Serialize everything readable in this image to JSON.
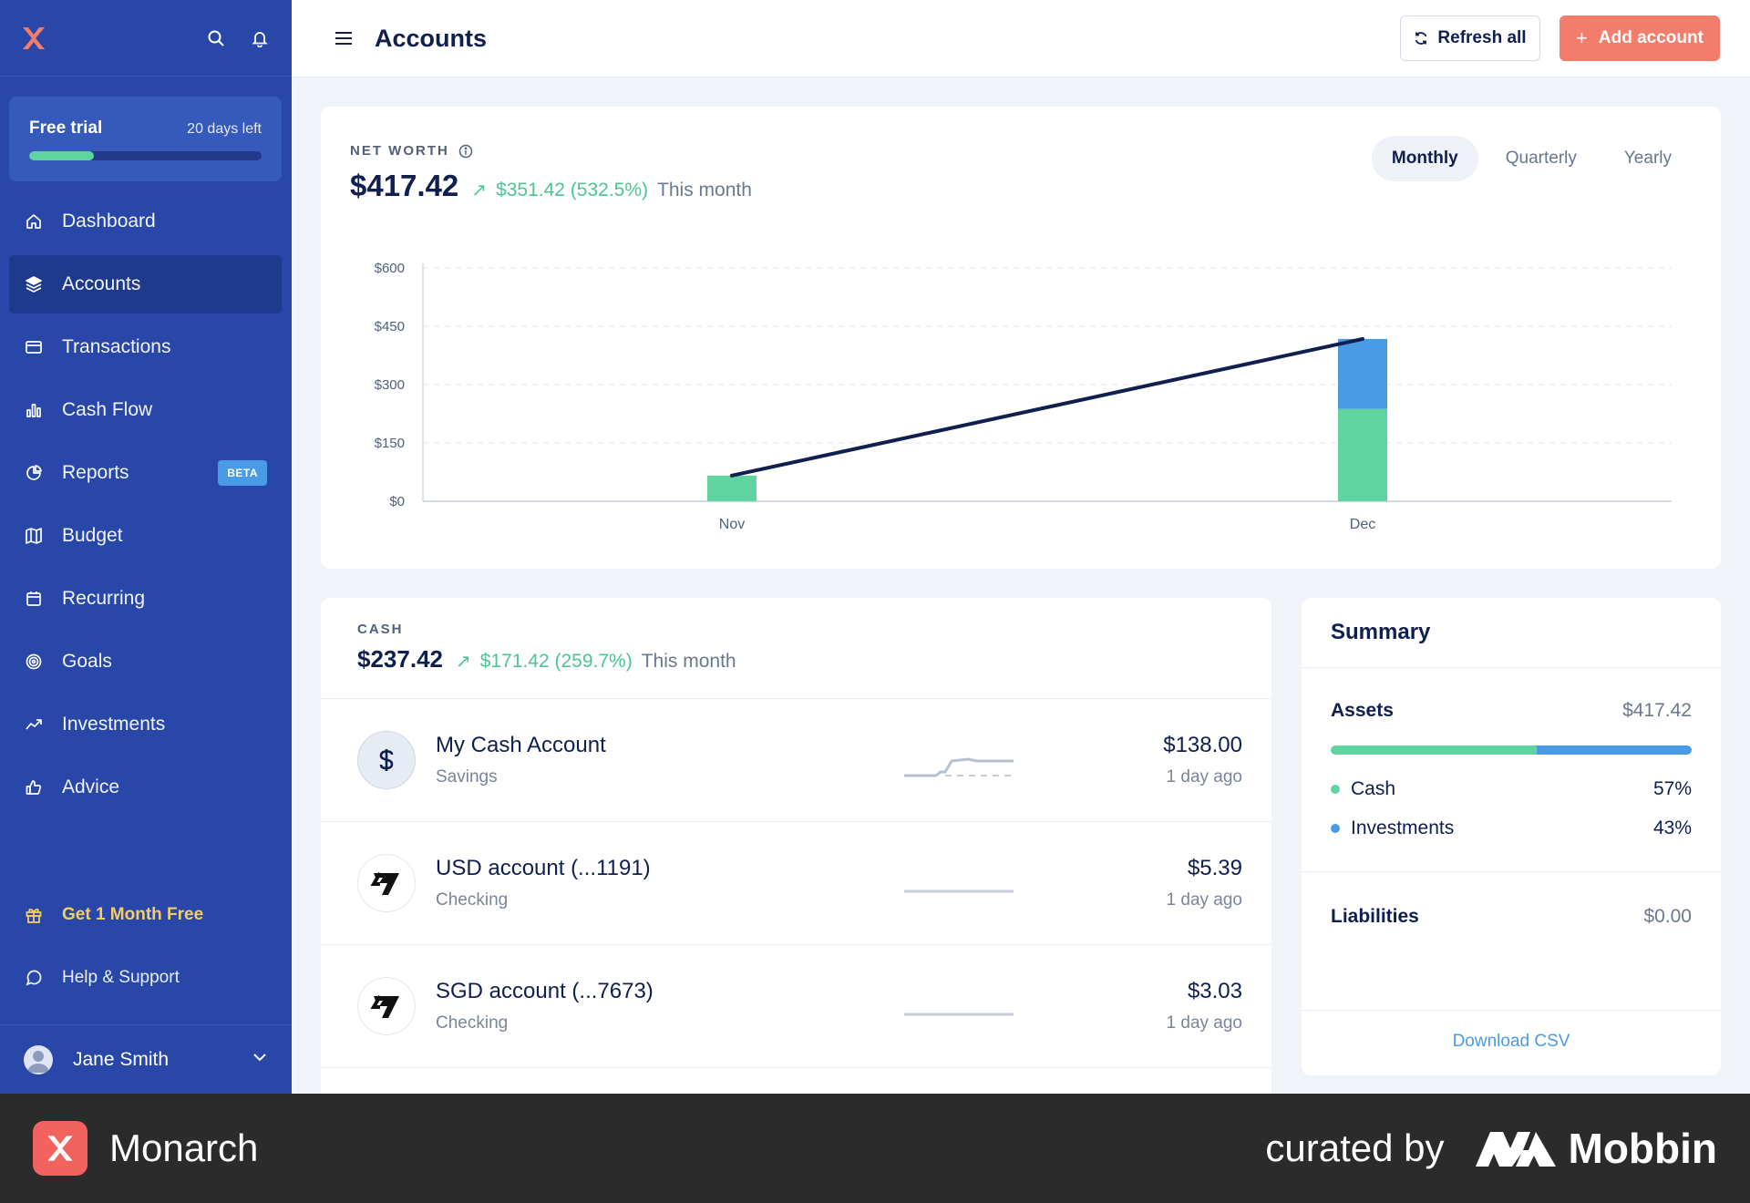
{
  "sidebar": {
    "trial": {
      "title": "Free trial",
      "days_left": "20 days left",
      "progress": 0.28
    },
    "nav": [
      {
        "label": "Dashboard",
        "icon": "home-icon"
      },
      {
        "label": "Accounts",
        "icon": "layers-icon",
        "active": true
      },
      {
        "label": "Transactions",
        "icon": "credit-card-icon"
      },
      {
        "label": "Cash Flow",
        "icon": "bar-chart-icon"
      },
      {
        "label": "Reports",
        "icon": "pie-chart-icon",
        "badge": "BETA"
      },
      {
        "label": "Budget",
        "icon": "map-icon"
      },
      {
        "label": "Recurring",
        "icon": "calendar-icon"
      },
      {
        "label": "Goals",
        "icon": "target-icon"
      },
      {
        "label": "Investments",
        "icon": "trending-up-icon"
      },
      {
        "label": "Advice",
        "icon": "thumbs-up-icon"
      }
    ],
    "promo": "Get 1 Month Free",
    "help": "Help & Support",
    "user": "Jane Smith"
  },
  "header": {
    "title": "Accounts",
    "refresh_label": "Refresh all",
    "add_label": "Add account"
  },
  "net_worth": {
    "label": "NET WORTH",
    "value": "$417.42",
    "change": "$351.42 (532.5%)",
    "period": "This month",
    "tabs": [
      "Monthly",
      "Quarterly",
      "Yearly"
    ],
    "active_tab": "Monthly"
  },
  "chart_data": {
    "type": "bar",
    "categories": [
      "Nov",
      "Dec"
    ],
    "series": [
      {
        "name": "Cash",
        "values": [
          66,
          237.42
        ],
        "color": "#5fd3a0"
      },
      {
        "name": "Investments",
        "values": [
          0,
          180
        ],
        "color": "#4a9be6"
      }
    ],
    "line": {
      "name": "Net worth",
      "values": [
        66,
        417.42
      ],
      "color": "#0f1f4f"
    },
    "yticks": [
      "$0",
      "$150",
      "$300",
      "$450",
      "$600"
    ],
    "ylim": [
      0,
      600
    ],
    "grid": true
  },
  "cash": {
    "label": "CASH",
    "value": "$237.42",
    "change": "$171.42 (259.7%)",
    "period": "This month",
    "accounts": [
      {
        "name": "My Cash Account",
        "type": "Savings",
        "balance": "$138.00",
        "updated": "1 day ago",
        "logo": "dollar-icon"
      },
      {
        "name": "USD account (...1191)",
        "type": "Checking",
        "balance": "$5.39",
        "updated": "1 day ago",
        "logo": "wise-logo-icon"
      },
      {
        "name": "SGD account (...7673)",
        "type": "Checking",
        "balance": "$3.03",
        "updated": "1 day ago",
        "logo": "wise-logo-icon"
      }
    ]
  },
  "summary": {
    "title": "Summary",
    "assets_label": "Assets",
    "assets_value": "$417.42",
    "breakdown": [
      {
        "name": "Cash",
        "pct": "57%",
        "share": 0.57,
        "color": "#5fd3a0"
      },
      {
        "name": "Investments",
        "pct": "43%",
        "share": 0.43,
        "color": "#4a9be6"
      }
    ],
    "liabilities_label": "Liabilities",
    "liabilities_value": "$0.00",
    "download": "Download CSV"
  },
  "footer": {
    "brand": "Monarch",
    "curated": "curated by",
    "mobbin": "Mobbin"
  }
}
